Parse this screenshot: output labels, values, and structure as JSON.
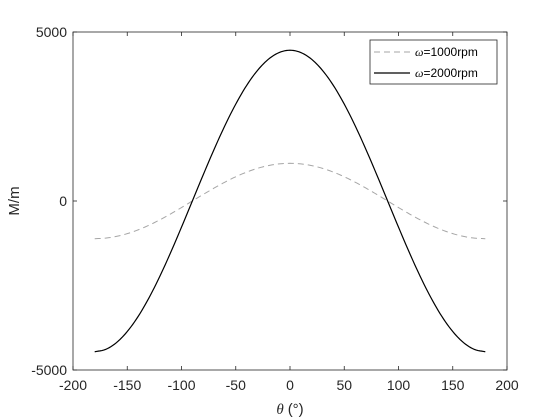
{
  "chart_data": {
    "type": "line",
    "xlabel": {
      "symbol": "θ",
      "unit": "(°)"
    },
    "ylabel": "M/m",
    "xlim": [
      -200,
      200
    ],
    "ylim": [
      -5000,
      5000
    ],
    "x_ticks": [
      -200,
      -150,
      -100,
      -50,
      0,
      50,
      100,
      150,
      200
    ],
    "y_ticks": [
      -5000,
      0,
      5000
    ],
    "grid": false,
    "legend_position": "top-right",
    "x": [
      -180,
      -170,
      -160,
      -150,
      -140,
      -130,
      -120,
      -110,
      -100,
      -90,
      -80,
      -70,
      -60,
      -50,
      -40,
      -30,
      -20,
      -10,
      0,
      10,
      20,
      30,
      40,
      50,
      60,
      70,
      80,
      90,
      100,
      110,
      120,
      130,
      140,
      150,
      160,
      170,
      180
    ],
    "series": [
      {
        "name": {
          "symbol": "ω",
          "text": "=1000rpm"
        },
        "style": "dashed",
        "color": "#a6a6a6",
        "values": [
          -1115,
          -1098,
          -1048,
          -966,
          -854,
          -717,
          -558,
          -381,
          -194,
          0,
          194,
          381,
          558,
          717,
          854,
          966,
          1048,
          1098,
          1115,
          1098,
          1048,
          966,
          854,
          717,
          558,
          381,
          194,
          0,
          -194,
          -381,
          -558,
          -717,
          -854,
          -966,
          -1048,
          -1098,
          -1115
        ]
      },
      {
        "name": {
          "symbol": "ω",
          "text": "=2000rpm"
        },
        "style": "solid",
        "color": "#000000",
        "values": [
          -4460,
          -4392,
          -4191,
          -3862,
          -3417,
          -2867,
          -2230,
          -1525,
          -774,
          0,
          774,
          1525,
          2230,
          2867,
          3417,
          3862,
          4191,
          4392,
          4460,
          4392,
          4191,
          3862,
          3417,
          2867,
          2230,
          1525,
          774,
          0,
          -774,
          -1525,
          -2230,
          -2867,
          -3417,
          -3862,
          -4191,
          -4392,
          -4460
        ]
      }
    ]
  }
}
